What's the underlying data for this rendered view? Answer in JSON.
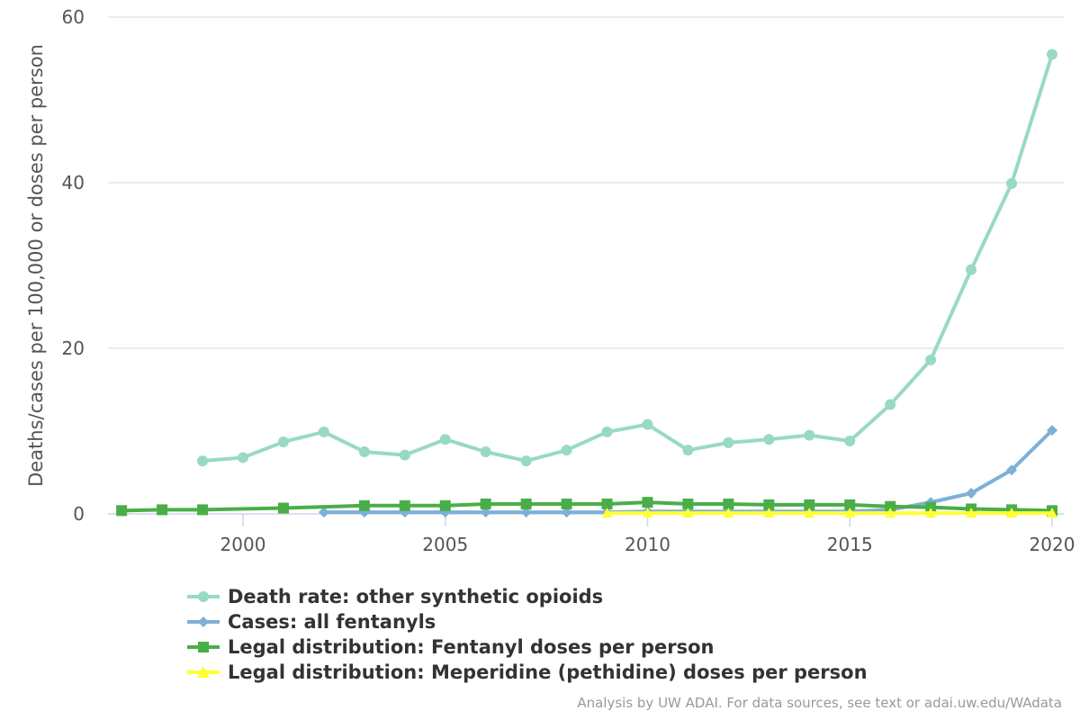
{
  "chart_data": {
    "type": "line",
    "title": "",
    "xlabel": "",
    "ylabel": "Deaths/cases per 100,000 or doses per person",
    "ylim": [
      0,
      60
    ],
    "xlim": [
      1996.5,
      2020.3
    ],
    "yticks": [
      0,
      20,
      40,
      60
    ],
    "xticks": [
      2000,
      2005,
      2010,
      2015,
      2020
    ],
    "grid": true,
    "legend_position": "bottom",
    "series": [
      {
        "name": "Death rate: other synthetic opioids",
        "color": "#98d9c5",
        "marker": "circle",
        "x": [
          1999,
          2000,
          2001,
          2002,
          2003,
          2004,
          2005,
          2006,
          2007,
          2008,
          2009,
          2010,
          2011,
          2012,
          2013,
          2014,
          2015,
          2016,
          2017,
          2018,
          2019,
          2020
        ],
        "values": [
          6.4,
          6.8,
          8.7,
          9.9,
          7.5,
          7.1,
          9.0,
          7.5,
          6.4,
          7.7,
          9.9,
          10.8,
          7.7,
          8.6,
          9.0,
          9.5,
          8.8,
          13.2,
          18.6,
          29.5,
          39.9,
          55.5
        ]
      },
      {
        "name": "Cases: all fentanyls",
        "color": "#7eb0d5",
        "marker": "diamond",
        "x": [
          2002,
          2003,
          2004,
          2005,
          2006,
          2007,
          2008,
          2009,
          2010,
          2011,
          2012,
          2013,
          2014,
          2015,
          2016,
          2017,
          2018,
          2019,
          2020
        ],
        "values": [
          0.2,
          0.2,
          0.2,
          0.2,
          0.2,
          0.2,
          0.2,
          0.2,
          0.3,
          0.3,
          0.3,
          0.3,
          0.3,
          0.3,
          0.5,
          1.4,
          2.5,
          5.3,
          10.1
        ]
      },
      {
        "name": "Legal distribution: Fentanyl doses per person",
        "color": "#4aae48",
        "marker": "square",
        "x": [
          1997,
          1998,
          1999,
          2001,
          2003,
          2004,
          2005,
          2006,
          2007,
          2008,
          2009,
          2010,
          2011,
          2012,
          2013,
          2014,
          2015,
          2016,
          2017,
          2018,
          2019,
          2020
        ],
        "values": [
          0.4,
          0.5,
          0.5,
          0.7,
          1.0,
          1.0,
          1.0,
          1.2,
          1.2,
          1.2,
          1.2,
          1.4,
          1.2,
          1.2,
          1.1,
          1.1,
          1.1,
          0.9,
          0.8,
          0.6,
          0.5,
          0.4
        ]
      },
      {
        "name": "Legal distribution: Meperidine (pethidine) doses per person",
        "color": "#ffff33",
        "marker": "triangle",
        "x": [
          2009,
          2010,
          2011,
          2012,
          2013,
          2014,
          2015,
          2016,
          2017,
          2018,
          2019,
          2020
        ],
        "values": [
          0.1,
          0.1,
          0.1,
          0.1,
          0.1,
          0.1,
          0.1,
          0.1,
          0.1,
          0.1,
          0.1,
          0.1
        ]
      }
    ]
  },
  "legend": {
    "items": [
      {
        "label": "Death rate: other synthetic opioids"
      },
      {
        "label": "Cases: all fentanyls"
      },
      {
        "label": "Legal distribution: Fentanyl doses per person"
      },
      {
        "label": "Legal distribution: Meperidine (pethidine) doses per person"
      }
    ]
  },
  "credits": "Analysis by UW ADAI. For data sources, see text or adai.uw.edu/WAdata"
}
